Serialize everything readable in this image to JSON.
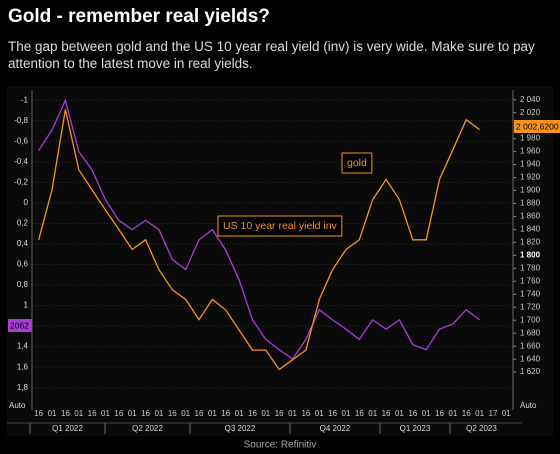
{
  "chart_data": {
    "type": "line",
    "title": "Gold - remember real yields?",
    "subtitle": "The gap between gold and the US 10 year real yield (inv) is very wide. Make sure to pay attention to the latest move in real yields.",
    "source": "Source: Refinitiv",
    "categories": [
      "16",
      "01",
      "16",
      "01",
      "16",
      "01",
      "16",
      "01",
      "16",
      "01",
      "16",
      "01",
      "16",
      "01",
      "16",
      "01",
      "16",
      "01",
      "16",
      "01",
      "16",
      "01",
      "16",
      "01",
      "16",
      "01",
      "16",
      "01",
      "16",
      "01",
      "16",
      "01",
      "16",
      "01",
      "17",
      "01"
    ],
    "quarters": [
      "Q1 2022",
      "Q2 2022",
      "Q3 2022",
      "Q4 2022",
      "Q1 2023",
      "Q2 2023"
    ],
    "series": [
      {
        "name": "US 10 year real yield inv",
        "color": "#a53fd6",
        "axis": "y",
        "values": [
          -0.51,
          -0.71,
          -1.0,
          -0.5,
          -0.32,
          -0.03,
          0.17,
          0.26,
          0.17,
          0.26,
          0.55,
          0.65,
          0.36,
          0.26,
          0.46,
          0.75,
          1.14,
          1.33,
          1.43,
          1.52,
          1.33,
          1.04,
          1.14,
          1.23,
          1.33,
          1.14,
          1.23,
          1.14,
          1.38,
          1.43,
          1.23,
          1.18,
          1.04,
          1.14,
          null,
          null
        ]
      },
      {
        "name": "gold",
        "color": "#f7941d",
        "axis": "y2",
        "values": [
          1824,
          1901,
          2025,
          1932,
          1901,
          1870,
          1840,
          1809,
          1824,
          1778,
          1747,
          1732,
          1701,
          1732,
          1716,
          1685,
          1654,
          1654,
          1624,
          1639,
          1654,
          1732,
          1778,
          1809,
          1824,
          1886,
          1917,
          1886,
          1824,
          1824,
          1917,
          1963,
          2009,
          1994,
          null,
          null
        ]
      }
    ],
    "ylim": [
      1.92,
      -1.1
    ],
    "yticks": [
      -1,
      {
        "value": -0.8,
        "label": "-0,8"
      },
      {
        "value": -0.6,
        "label": "-0,6"
      },
      {
        "value": -0.4,
        "label": "-0,4"
      },
      {
        "value": -0.2,
        "label": "-0,2"
      },
      0,
      {
        "value": 0.2,
        "label": "0,2"
      },
      {
        "value": 0.4,
        "label": "0,4"
      },
      {
        "value": 0.6,
        "label": "0,6"
      },
      {
        "value": 0.8,
        "label": "0,8"
      },
      1,
      {
        "value": 1.2,
        "label": "1,2"
      },
      {
        "value": 1.4,
        "label": "1,4"
      },
      {
        "value": 1.6,
        "label": "1,6"
      },
      {
        "value": 1.8,
        "label": "1,8"
      }
    ],
    "y2lim": [
      1577,
      2055
    ],
    "y2ticks": [
      {
        "value": 2040,
        "label": "2 040"
      },
      {
        "value": 2020,
        "label": "2 020"
      },
      {
        "value": 2000,
        "label": "2 000"
      },
      {
        "value": 1980,
        "label": "1 980"
      },
      {
        "value": 1960,
        "label": "1 960"
      },
      {
        "value": 1940,
        "label": "1 940"
      },
      {
        "value": 1920,
        "label": "1 920"
      },
      {
        "value": 1900,
        "label": "1 900"
      },
      {
        "value": 1880,
        "label": "1 880"
      },
      {
        "value": 1860,
        "label": "1 860"
      },
      {
        "value": 1840,
        "label": "1 840"
      },
      {
        "value": 1820,
        "label": "1 820"
      },
      {
        "value": 1800,
        "label": "1 800",
        "bold": true
      },
      {
        "value": 1780,
        "label": "1 780"
      },
      {
        "value": 1760,
        "label": "1 760"
      },
      {
        "value": 1740,
        "label": "1 740"
      },
      {
        "value": 1720,
        "label": "1 720"
      },
      {
        "value": 1700,
        "label": "1 700"
      },
      {
        "value": 1680,
        "label": "1 680"
      },
      {
        "value": 1660,
        "label": "1 660"
      },
      {
        "value": 1640,
        "label": "1 640"
      },
      {
        "value": 1620,
        "label": "1 620"
      }
    ],
    "scale_label": "Auto",
    "left_badge": "2062",
    "right_badge": "2 002,6200",
    "grid": true
  }
}
